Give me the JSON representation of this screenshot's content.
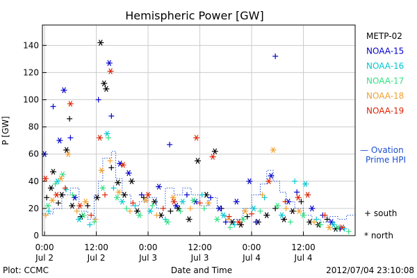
{
  "chart_data": {
    "type": "scatter",
    "title": "Hemispheric Power [GW]",
    "ylabel": "P [GW]",
    "xlabel": "Date and Time",
    "ylim": [
      0,
      155
    ],
    "xlim_hours": [
      -0.5,
      72
    ],
    "y_ticks": [
      0,
      20,
      40,
      60,
      80,
      100,
      120,
      140
    ],
    "x_ticks": [
      {
        "hour": 0,
        "time": "0:00",
        "date": "Jul 2"
      },
      {
        "hour": 12,
        "time": "12:00",
        "date": "Jul 2"
      },
      {
        "hour": 24,
        "time": "0:00",
        "date": "Jul 3"
      },
      {
        "hour": 36,
        "time": "12:00",
        "date": "Jul 3"
      },
      {
        "hour": 48,
        "time": "0:00",
        "date": "Jul 4"
      },
      {
        "hour": 60,
        "time": "12:00",
        "date": "Jul 4"
      }
    ],
    "legend_placement": "right",
    "series": [
      {
        "name": "METP-02",
        "color": "#000000",
        "points": [
          {
            "x": 0.5,
            "y": 28,
            "m": "+"
          },
          {
            "x": 1.5,
            "y": 35,
            "m": "*"
          },
          {
            "x": 2.0,
            "y": 47,
            "m": "*"
          },
          {
            "x": 3.2,
            "y": 24,
            "m": "+"
          },
          {
            "x": 4.0,
            "y": 30,
            "m": "*"
          },
          {
            "x": 5.1,
            "y": 63,
            "m": "*"
          },
          {
            "x": 5.8,
            "y": 86,
            "m": "+"
          },
          {
            "x": 6.4,
            "y": 22,
            "m": "*"
          },
          {
            "x": 8.5,
            "y": 14,
            "m": "*"
          },
          {
            "x": 10.0,
            "y": 22,
            "m": "+"
          },
          {
            "x": 12.2,
            "y": 28,
            "m": "*"
          },
          {
            "x": 13.0,
            "y": 142,
            "m": "*"
          },
          {
            "x": 13.8,
            "y": 112,
            "m": "*"
          },
          {
            "x": 14.3,
            "y": 108,
            "m": "*"
          },
          {
            "x": 15.5,
            "y": 50,
            "m": "+"
          },
          {
            "x": 17.0,
            "y": 39,
            "m": "*"
          },
          {
            "x": 18.5,
            "y": 30,
            "m": "*"
          },
          {
            "x": 20.2,
            "y": 40,
            "m": "*"
          },
          {
            "x": 21.5,
            "y": 18,
            "m": "*"
          },
          {
            "x": 23.0,
            "y": 28,
            "m": "+"
          },
          {
            "x": 25.5,
            "y": 25,
            "m": "*"
          },
          {
            "x": 27.0,
            "y": 15,
            "m": "*"
          },
          {
            "x": 29.2,
            "y": 18,
            "m": "+"
          },
          {
            "x": 31.0,
            "y": 20,
            "m": "*"
          },
          {
            "x": 33.5,
            "y": 12,
            "m": "*"
          },
          {
            "x": 35.5,
            "y": 55,
            "m": "*"
          },
          {
            "x": 37.5,
            "y": 30,
            "m": "*"
          },
          {
            "x": 39.5,
            "y": 62,
            "m": "*"
          },
          {
            "x": 41.0,
            "y": 20,
            "m": "+"
          },
          {
            "x": 43.5,
            "y": 10,
            "m": "*"
          },
          {
            "x": 45.5,
            "y": 8,
            "m": "*"
          },
          {
            "x": 47.0,
            "y": 14,
            "m": "+"
          },
          {
            "x": 49.5,
            "y": 10,
            "m": "*"
          },
          {
            "x": 51.5,
            "y": 15,
            "m": "*"
          },
          {
            "x": 53.5,
            "y": 20,
            "m": "+"
          },
          {
            "x": 55.5,
            "y": 12,
            "m": "*"
          },
          {
            "x": 57.5,
            "y": 18,
            "m": "*"
          },
          {
            "x": 59.5,
            "y": 25,
            "m": "+"
          },
          {
            "x": 61.5,
            "y": 10,
            "m": "*"
          },
          {
            "x": 63.5,
            "y": 8,
            "m": "*"
          },
          {
            "x": 65.5,
            "y": 12,
            "m": "+"
          },
          {
            "x": 67.5,
            "y": 5,
            "m": "*"
          }
        ]
      },
      {
        "name": "NOAA-15",
        "color": "#0000cc",
        "points": [
          {
            "x": 0.0,
            "y": 60,
            "m": "*"
          },
          {
            "x": 2.0,
            "y": 95,
            "m": "+"
          },
          {
            "x": 3.5,
            "y": 70,
            "m": "*"
          },
          {
            "x": 4.5,
            "y": 107,
            "m": "*"
          },
          {
            "x": 6.0,
            "y": 72,
            "m": "+"
          },
          {
            "x": 7.0,
            "y": 28,
            "m": "*"
          },
          {
            "x": 12.5,
            "y": 100,
            "m": "+"
          },
          {
            "x": 15.0,
            "y": 127,
            "m": "*"
          },
          {
            "x": 15.5,
            "y": 88,
            "m": "+"
          },
          {
            "x": 17.5,
            "y": 53,
            "m": "*"
          },
          {
            "x": 19.5,
            "y": 46,
            "m": "*"
          },
          {
            "x": 22.5,
            "y": 30,
            "m": "+"
          },
          {
            "x": 26.5,
            "y": 36,
            "m": "*"
          },
          {
            "x": 29.0,
            "y": 67,
            "m": "+"
          },
          {
            "x": 30.5,
            "y": 22,
            "m": "*"
          },
          {
            "x": 33.0,
            "y": 30,
            "m": "+"
          },
          {
            "x": 35.0,
            "y": 25,
            "m": "*"
          },
          {
            "x": 38.5,
            "y": 28,
            "m": "+"
          },
          {
            "x": 40.5,
            "y": 20,
            "m": "*"
          },
          {
            "x": 42.0,
            "y": 10,
            "m": "+"
          },
          {
            "x": 44.5,
            "y": 25,
            "m": "*"
          },
          {
            "x": 47.5,
            "y": 40,
            "m": "*"
          },
          {
            "x": 49.0,
            "y": 10,
            "m": "+"
          },
          {
            "x": 52.5,
            "y": 44,
            "m": "*"
          },
          {
            "x": 53.5,
            "y": 132,
            "m": "+"
          },
          {
            "x": 56.5,
            "y": 25,
            "m": "*"
          },
          {
            "x": 58.5,
            "y": 32,
            "m": "+"
          },
          {
            "x": 62.0,
            "y": 20,
            "m": "*"
          },
          {
            "x": 64.5,
            "y": 15,
            "m": "+"
          },
          {
            "x": 66.5,
            "y": 10,
            "m": "*"
          },
          {
            "x": 68.5,
            "y": 5,
            "m": "+"
          }
        ]
      },
      {
        "name": "NOAA-16",
        "color": "#00c8d2",
        "points": [
          {
            "x": 1.0,
            "y": 18,
            "m": "+"
          },
          {
            "x": 3.0,
            "y": 40,
            "m": "*"
          },
          {
            "x": 5.0,
            "y": 34,
            "m": "+"
          },
          {
            "x": 8.0,
            "y": 12,
            "m": "*"
          },
          {
            "x": 10.5,
            "y": 8,
            "m": "+"
          },
          {
            "x": 14.5,
            "y": 75,
            "m": "*"
          },
          {
            "x": 16.0,
            "y": 35,
            "m": "+"
          },
          {
            "x": 18.0,
            "y": 25,
            "m": "*"
          },
          {
            "x": 21.0,
            "y": 22,
            "m": "+"
          },
          {
            "x": 24.5,
            "y": 18,
            "m": "*"
          },
          {
            "x": 28.0,
            "y": 12,
            "m": "+"
          },
          {
            "x": 32.0,
            "y": 25,
            "m": "*"
          },
          {
            "x": 36.5,
            "y": 30,
            "m": "+"
          },
          {
            "x": 41.5,
            "y": 15,
            "m": "*"
          },
          {
            "x": 44.0,
            "y": 8,
            "m": "+"
          },
          {
            "x": 48.5,
            "y": 20,
            "m": "*"
          },
          {
            "x": 51.0,
            "y": 28,
            "m": "+"
          },
          {
            "x": 55.0,
            "y": 15,
            "m": "*"
          },
          {
            "x": 58.0,
            "y": 40,
            "m": "+"
          },
          {
            "x": 60.5,
            "y": 38,
            "m": "*"
          },
          {
            "x": 63.0,
            "y": 12,
            "m": "+"
          },
          {
            "x": 67.0,
            "y": 8,
            "m": "*"
          },
          {
            "x": 69.5,
            "y": 5,
            "m": "+"
          }
        ]
      },
      {
        "name": "NOAA-17",
        "color": "#33e084",
        "points": [
          {
            "x": 0.8,
            "y": 22,
            "m": "*"
          },
          {
            "x": 2.5,
            "y": 38,
            "m": "+"
          },
          {
            "x": 4.2,
            "y": 45,
            "m": "*"
          },
          {
            "x": 6.5,
            "y": 30,
            "m": "+"
          },
          {
            "x": 9.0,
            "y": 15,
            "m": "*"
          },
          {
            "x": 11.5,
            "y": 10,
            "m": "+"
          },
          {
            "x": 13.5,
            "y": 35,
            "m": "*"
          },
          {
            "x": 14.8,
            "y": 72,
            "m": "+"
          },
          {
            "x": 16.8,
            "y": 28,
            "m": "*"
          },
          {
            "x": 19.0,
            "y": 20,
            "m": "+"
          },
          {
            "x": 22.0,
            "y": 15,
            "m": "*"
          },
          {
            "x": 25.0,
            "y": 22,
            "m": "+"
          },
          {
            "x": 28.5,
            "y": 10,
            "m": "*"
          },
          {
            "x": 31.5,
            "y": 18,
            "m": "+"
          },
          {
            "x": 34.5,
            "y": 26,
            "m": "*"
          },
          {
            "x": 37.0,
            "y": 20,
            "m": "+"
          },
          {
            "x": 40.0,
            "y": 12,
            "m": "*"
          },
          {
            "x": 43.0,
            "y": 6,
            "m": "+"
          },
          {
            "x": 46.0,
            "y": 12,
            "m": "*"
          },
          {
            "x": 50.0,
            "y": 18,
            "m": "+"
          },
          {
            "x": 54.0,
            "y": 22,
            "m": "*"
          },
          {
            "x": 57.0,
            "y": 10,
            "m": "+"
          },
          {
            "x": 60.0,
            "y": 15,
            "m": "*"
          },
          {
            "x": 64.0,
            "y": 8,
            "m": "+"
          },
          {
            "x": 68.0,
            "y": 6,
            "m": "*"
          },
          {
            "x": 70.5,
            "y": 3,
            "m": "+"
          }
        ]
      },
      {
        "name": "NOAA-18",
        "color": "#f0a030",
        "points": [
          {
            "x": 0.3,
            "y": 15,
            "m": "+"
          },
          {
            "x": 1.8,
            "y": 26,
            "m": "*"
          },
          {
            "x": 3.8,
            "y": 42,
            "m": "*"
          },
          {
            "x": 5.5,
            "y": 60,
            "m": "*"
          },
          {
            "x": 7.5,
            "y": 18,
            "m": "+"
          },
          {
            "x": 9.5,
            "y": 25,
            "m": "*"
          },
          {
            "x": 11.8,
            "y": 12,
            "m": "+"
          },
          {
            "x": 13.2,
            "y": 48,
            "m": "*"
          },
          {
            "x": 15.2,
            "y": 55,
            "m": "+"
          },
          {
            "x": 17.2,
            "y": 32,
            "m": "*"
          },
          {
            "x": 19.8,
            "y": 18,
            "m": "+"
          },
          {
            "x": 23.5,
            "y": 26,
            "m": "*"
          },
          {
            "x": 26.0,
            "y": 15,
            "m": "+"
          },
          {
            "x": 29.8,
            "y": 28,
            "m": "*"
          },
          {
            "x": 33.8,
            "y": 20,
            "m": "+"
          },
          {
            "x": 38.0,
            "y": 24,
            "m": "*"
          },
          {
            "x": 42.5,
            "y": 12,
            "m": "+"
          },
          {
            "x": 46.5,
            "y": 18,
            "m": "*"
          },
          {
            "x": 50.5,
            "y": 30,
            "m": "+"
          },
          {
            "x": 53.0,
            "y": 63,
            "m": "*"
          },
          {
            "x": 56.0,
            "y": 20,
            "m": "+"
          },
          {
            "x": 59.0,
            "y": 18,
            "m": "*"
          },
          {
            "x": 62.5,
            "y": 10,
            "m": "+"
          },
          {
            "x": 66.0,
            "y": 6,
            "m": "*"
          }
        ]
      },
      {
        "name": "NOAA-19",
        "color": "#dd2200",
        "points": [
          {
            "x": 0.2,
            "y": 42,
            "m": "*"
          },
          {
            "x": 2.8,
            "y": 30,
            "m": "*"
          },
          {
            "x": 4.8,
            "y": 35,
            "m": "+"
          },
          {
            "x": 6.0,
            "y": 97,
            "m": "*"
          },
          {
            "x": 8.2,
            "y": 22,
            "m": "*"
          },
          {
            "x": 10.8,
            "y": 15,
            "m": "+"
          },
          {
            "x": 12.8,
            "y": 72,
            "m": "*"
          },
          {
            "x": 14.0,
            "y": 30,
            "m": "+"
          },
          {
            "x": 15.3,
            "y": 121,
            "m": "*"
          },
          {
            "x": 18.2,
            "y": 52,
            "m": "*"
          },
          {
            "x": 20.5,
            "y": 24,
            "m": "+"
          },
          {
            "x": 24.0,
            "y": 30,
            "m": "*"
          },
          {
            "x": 27.5,
            "y": 20,
            "m": "+"
          },
          {
            "x": 30.0,
            "y": 25,
            "m": "*"
          },
          {
            "x": 35.2,
            "y": 72,
            "m": "*"
          },
          {
            "x": 36.0,
            "y": 24,
            "m": "+"
          },
          {
            "x": 39.0,
            "y": 58,
            "m": "*"
          },
          {
            "x": 42.8,
            "y": 14,
            "m": "+"
          },
          {
            "x": 45.0,
            "y": 10,
            "m": "*"
          },
          {
            "x": 48.0,
            "y": 16,
            "m": "+"
          },
          {
            "x": 52.0,
            "y": 40,
            "m": "*"
          },
          {
            "x": 55.8,
            "y": 25,
            "m": "+"
          },
          {
            "x": 58.8,
            "y": 28,
            "m": "*"
          },
          {
            "x": 61.0,
            "y": 30,
            "m": "*"
          },
          {
            "x": 65.0,
            "y": 15,
            "m": "+"
          },
          {
            "x": 69.0,
            "y": 6,
            "m": "*"
          }
        ]
      }
    ],
    "ovation": {
      "name": "Ovation Prime HPI",
      "legend_line1": "— Ovation",
      "legend_line2": "Prime HPI",
      "color": "#1a4fd0",
      "steps": [
        [
          -0.5,
          16
        ],
        [
          2,
          20
        ],
        [
          4,
          30
        ],
        [
          6,
          35
        ],
        [
          8,
          18
        ],
        [
          10,
          12
        ],
        [
          11.5,
          30
        ],
        [
          12.5,
          40
        ],
        [
          13.5,
          57
        ],
        [
          15.5,
          62
        ],
        [
          16.5,
          42
        ],
        [
          18,
          30
        ],
        [
          20,
          22
        ],
        [
          22,
          25
        ],
        [
          24,
          28
        ],
        [
          26,
          20
        ],
        [
          28,
          35
        ],
        [
          30,
          30
        ],
        [
          32,
          35
        ],
        [
          34,
          30
        ],
        [
          36,
          22
        ],
        [
          38,
          28
        ],
        [
          40,
          20
        ],
        [
          41,
          15
        ],
        [
          42,
          10
        ],
        [
          44,
          12
        ],
        [
          46,
          20
        ],
        [
          48,
          30
        ],
        [
          50,
          38
        ],
        [
          51.5,
          48
        ],
        [
          53,
          40
        ],
        [
          54.5,
          32
        ],
        [
          56,
          25
        ],
        [
          58,
          20
        ],
        [
          60,
          15
        ],
        [
          62,
          12
        ],
        [
          64,
          10
        ],
        [
          66,
          14
        ],
        [
          68,
          12
        ],
        [
          70,
          15
        ],
        [
          71.5,
          15
        ]
      ]
    },
    "marker_legend": {
      "south": "+ south",
      "north": "* north"
    },
    "footer": {
      "left": "Plot: CCMC",
      "right": "2012/07/04 23:10:08"
    }
  }
}
